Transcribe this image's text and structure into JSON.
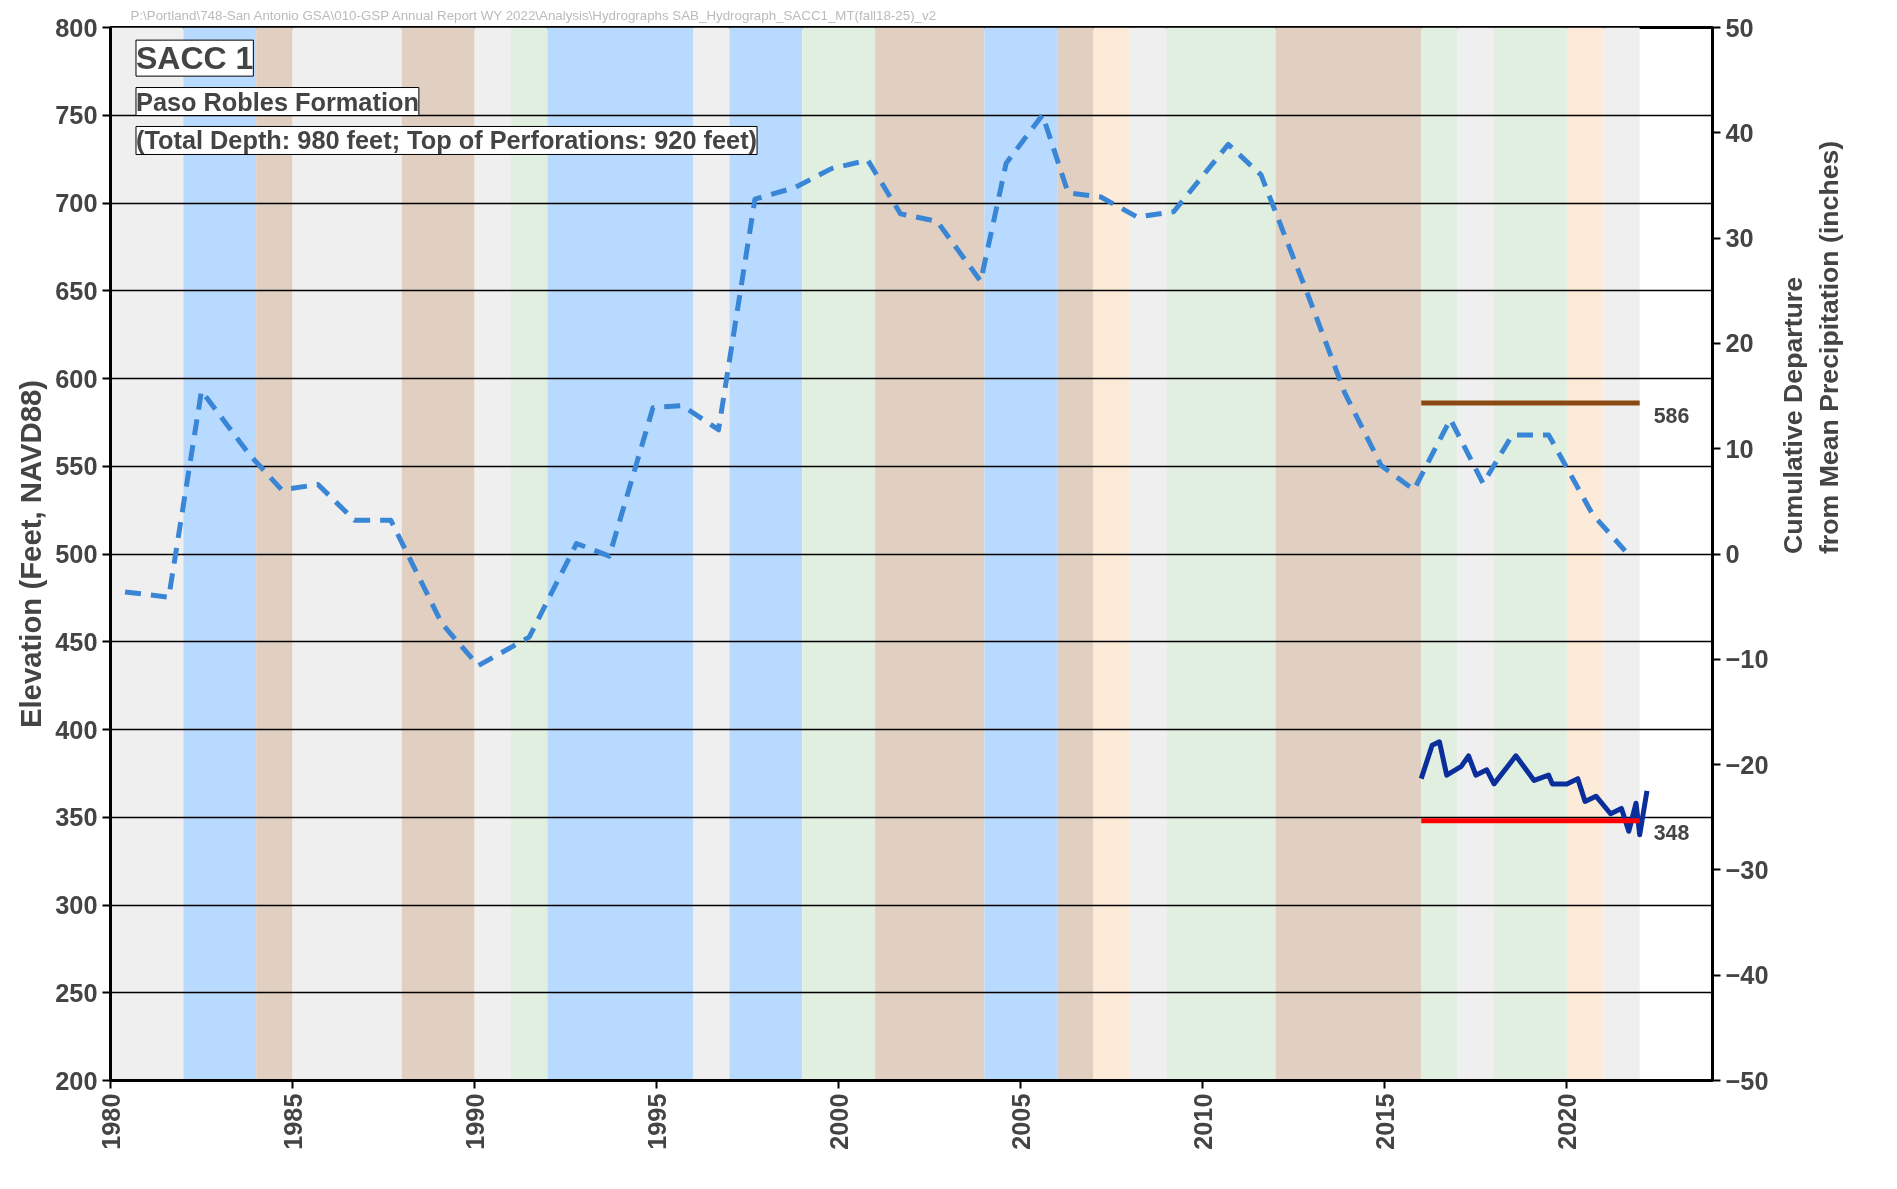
{
  "chart_data": {
    "type": "line",
    "title": "SACC 1",
    "subtitle": "Paso Robles Formation\n(Total Depth: 980 feet; Top of Perforations: 920 feet)",
    "ylabel": "Elevation (Feet, NAVD88)",
    "y2label": "Cumulative Departure\nfrom Mean Precipitation (inches)",
    "xlim": [
      1980,
      2024
    ],
    "xticks": [
      1980,
      1985,
      1990,
      1995,
      2000,
      2005,
      2010,
      2015,
      2020
    ],
    "ylim": [
      200,
      800
    ],
    "yticks": [
      200,
      250,
      300,
      350,
      400,
      450,
      500,
      550,
      600,
      650,
      700,
      750,
      800
    ],
    "y2lim": [
      -50,
      50
    ],
    "y2ticks": [
      -50,
      -40,
      -30,
      -20,
      -10,
      0,
      10,
      20,
      30,
      40,
      50
    ],
    "grid": "y",
    "marker": "none",
    "series": [
      {
        "color": "#3a86d6",
        "axis": "y2",
        "line_style": "dashed",
        "x": [
          1980.4,
          1981.6,
          1982.5,
          1983.8,
          1984.7,
          1985.7,
          1986.7,
          1987.7,
          1989.1,
          1990.1,
          1991.5,
          1992.8,
          1993.7,
          1994.9,
          1995.7,
          1996.7,
          1997.7,
          1998.8,
          1999.8,
          2000.8,
          2001.7,
          2002.7,
          2003.9,
          2004.6,
          2005.6,
          2006.3,
          2007.2,
          2008.2,
          2009.2,
          2010.7,
          2011.6,
          2012.9,
          2013.9,
          2014.9,
          2015.8,
          2016.8,
          2017.7,
          2018.5,
          2019.5,
          2020.7,
          2021.6
        ],
        "values": [
          -3.6,
          -4.1,
          15.5,
          9.5,
          6.1,
          6.6,
          3.2,
          3.2,
          -6.6,
          -10.6,
          -7.9,
          1.0,
          -0.2,
          13.9,
          14.1,
          11.8,
          33.7,
          34.8,
          36.6,
          37.4,
          32.3,
          31.6,
          25.9,
          37.1,
          41.7,
          34.3,
          33.9,
          32.0,
          32.5,
          38.9,
          36.0,
          24.5,
          15.3,
          8.4,
          6.1,
          12.8,
          6.7,
          11.3,
          11.3,
          3.8,
          0.3
        ]
      },
      {
        "color": "#0a2f9a",
        "line_style": "solid",
        "x": [
          2016.0,
          2016.3,
          2016.5,
          2016.7,
          2017.1,
          2017.3,
          2017.5,
          2017.8,
          2018.0,
          2018.6,
          2019.1,
          2019.5,
          2019.6,
          2020.0,
          2020.3,
          2020.5,
          2020.8,
          2021.2,
          2021.5,
          2021.7,
          2021.9,
          2022.0,
          2022.2
        ],
        "values": [
          372,
          391,
          393,
          374,
          379,
          385,
          374,
          377,
          369,
          385,
          371,
          374,
          369,
          369,
          372,
          359,
          362,
          352,
          355,
          342,
          358,
          340,
          365
        ]
      },
      {
        "color": "#8b4a14",
        "line_style": "solid",
        "x": [
          2016,
          2022
        ],
        "values": [
          586,
          586
        ]
      },
      {
        "color": "#ff0000",
        "line_style": "solid",
        "x": [
          2016,
          2022
        ],
        "values": [
          348,
          348
        ]
      }
    ],
    "bands": [
      {
        "axis": "x",
        "from": 1980,
        "to": 1982,
        "color": "#efefef"
      },
      {
        "axis": "x",
        "from": 1982,
        "to": 1984,
        "color": "#b8dafe"
      },
      {
        "axis": "x",
        "from": 1984,
        "to": 1985,
        "color": "#e1d0c1"
      },
      {
        "axis": "x",
        "from": 1985,
        "to": 1988,
        "color": "#efefef"
      },
      {
        "axis": "x",
        "from": 1988,
        "to": 1990,
        "color": "#e1d0c1"
      },
      {
        "axis": "x",
        "from": 1990,
        "to": 1991,
        "color": "#efefef"
      },
      {
        "axis": "x",
        "from": 1991,
        "to": 1992,
        "color": "#e1efe1"
      },
      {
        "axis": "x",
        "from": 1992,
        "to": 1996,
        "color": "#b8dafe"
      },
      {
        "axis": "x",
        "from": 1996,
        "to": 1997,
        "color": "#efefef"
      },
      {
        "axis": "x",
        "from": 1997,
        "to": 1999,
        "color": "#b8dafe"
      },
      {
        "axis": "x",
        "from": 1999,
        "to": 2001,
        "color": "#e1efe1"
      },
      {
        "axis": "x",
        "from": 2001,
        "to": 2004,
        "color": "#e1d0c1"
      },
      {
        "axis": "x",
        "from": 2004,
        "to": 2006,
        "color": "#b8dafe"
      },
      {
        "axis": "x",
        "from": 2006,
        "to": 2007,
        "color": "#e1d0c1"
      },
      {
        "axis": "x",
        "from": 2007,
        "to": 2008,
        "color": "#fdebd9"
      },
      {
        "axis": "x",
        "from": 2008,
        "to": 2009,
        "color": "#efefef"
      },
      {
        "axis": "x",
        "from": 2009,
        "to": 2012,
        "color": "#e1efe1"
      },
      {
        "axis": "x",
        "from": 2012,
        "to": 2016,
        "color": "#e1d0c1"
      },
      {
        "axis": "x",
        "from": 2016,
        "to": 2017,
        "color": "#e1efe1"
      },
      {
        "axis": "x",
        "from": 2017,
        "to": 2018,
        "color": "#efefef"
      },
      {
        "axis": "x",
        "from": 2018,
        "to": 2020,
        "color": "#e1efe1"
      },
      {
        "axis": "x",
        "from": 2020,
        "to": 2021,
        "color": "#fdebd9"
      },
      {
        "axis": "x",
        "from": 2021,
        "to": 2022,
        "color": "#efefef"
      }
    ],
    "annotations": [
      {
        "text": "586",
        "x": 2022,
        "y": 586
      },
      {
        "text": "348",
        "x": 2022,
        "y": 348
      },
      "P:\\Portland\\748-San Antonio GSA\\010-GSP Annual Report WY 2022\\Analysis\\Hydrographs SAB_Hydrograph_SACC1_MT(fall18-25)_v2"
    ]
  }
}
